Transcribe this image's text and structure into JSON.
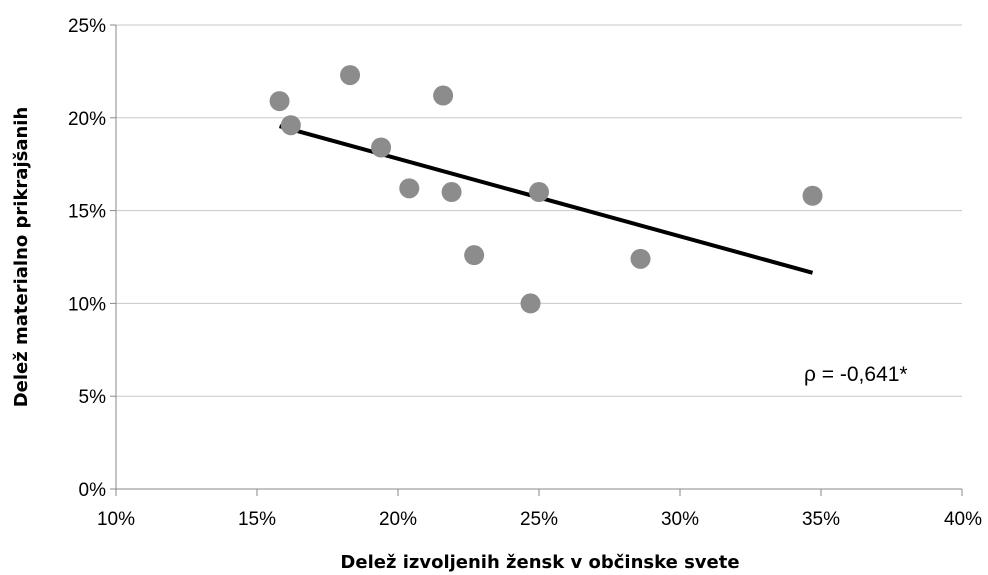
{
  "chart_data": {
    "type": "scatter",
    "title": "",
    "xlabel": "Delež izvoljenih žensk v občinske svete",
    "ylabel": "Delež materialno prikrajšanih",
    "xlim": [
      0.1,
      0.4
    ],
    "ylim": [
      0.0,
      0.25
    ],
    "x_ticks": [
      0.1,
      0.15,
      0.2,
      0.25,
      0.3,
      0.35,
      0.4
    ],
    "x_tick_labels": [
      "10%",
      "15%",
      "20%",
      "25%",
      "30%",
      "35%",
      "40%"
    ],
    "y_ticks": [
      0.0,
      0.05,
      0.1,
      0.15,
      0.2,
      0.25
    ],
    "y_tick_labels": [
      "0%",
      "5%",
      "10%",
      "15%",
      "20%",
      "25%"
    ],
    "grid": "horizontal",
    "legend": "none",
    "point_color": "#8c8c8c",
    "line_color": "#000000",
    "points": [
      {
        "x": 0.158,
        "y": 0.209
      },
      {
        "x": 0.162,
        "y": 0.196
      },
      {
        "x": 0.183,
        "y": 0.223
      },
      {
        "x": 0.194,
        "y": 0.184
      },
      {
        "x": 0.204,
        "y": 0.162
      },
      {
        "x": 0.216,
        "y": 0.212
      },
      {
        "x": 0.219,
        "y": 0.16
      },
      {
        "x": 0.227,
        "y": 0.126
      },
      {
        "x": 0.247,
        "y": 0.1
      },
      {
        "x": 0.25,
        "y": 0.16
      },
      {
        "x": 0.286,
        "y": 0.124
      },
      {
        "x": 0.347,
        "y": 0.158
      }
    ],
    "trendline": {
      "x": [
        0.158,
        0.347
      ],
      "y": [
        0.1955,
        0.1165
      ]
    },
    "annotation": "ρ = -0,641*"
  }
}
